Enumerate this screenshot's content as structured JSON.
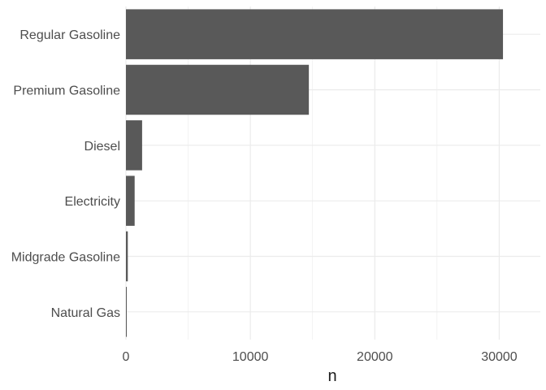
{
  "chart_data": {
    "type": "bar",
    "orientation": "horizontal",
    "categories": [
      "Regular Gasoline",
      "Premium Gasoline",
      "Diesel",
      "Electricity",
      "Midgrade Gasoline",
      "Natural Gas"
    ],
    "values": [
      30300,
      14700,
      1300,
      700,
      150,
      50
    ],
    "title": "",
    "xlabel": "n",
    "ylabel": "",
    "xlim": [
      0,
      33300
    ],
    "x_ticks": [
      0,
      10000,
      20000,
      30000
    ],
    "x_tick_labels": [
      "0",
      "10000",
      "20000",
      "30000"
    ],
    "grid": true,
    "legend": "none",
    "bar_color": "#595959",
    "grid_color": "#ebebeb"
  }
}
